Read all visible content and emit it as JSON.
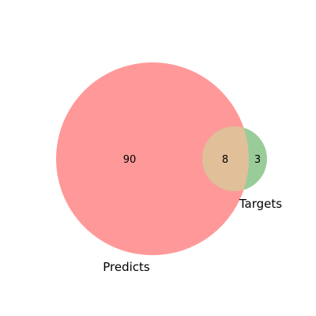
{
  "diagram": {
    "type": "venn2",
    "sets": [
      {
        "name": "Predicts",
        "color": "#ff9999"
      },
      {
        "name": "Targets",
        "color": "#99cc99"
      }
    ],
    "regions": {
      "predicts_only": "90",
      "targets_only": "3",
      "intersection": "8"
    },
    "intersection_color": "#e0bf99"
  }
}
